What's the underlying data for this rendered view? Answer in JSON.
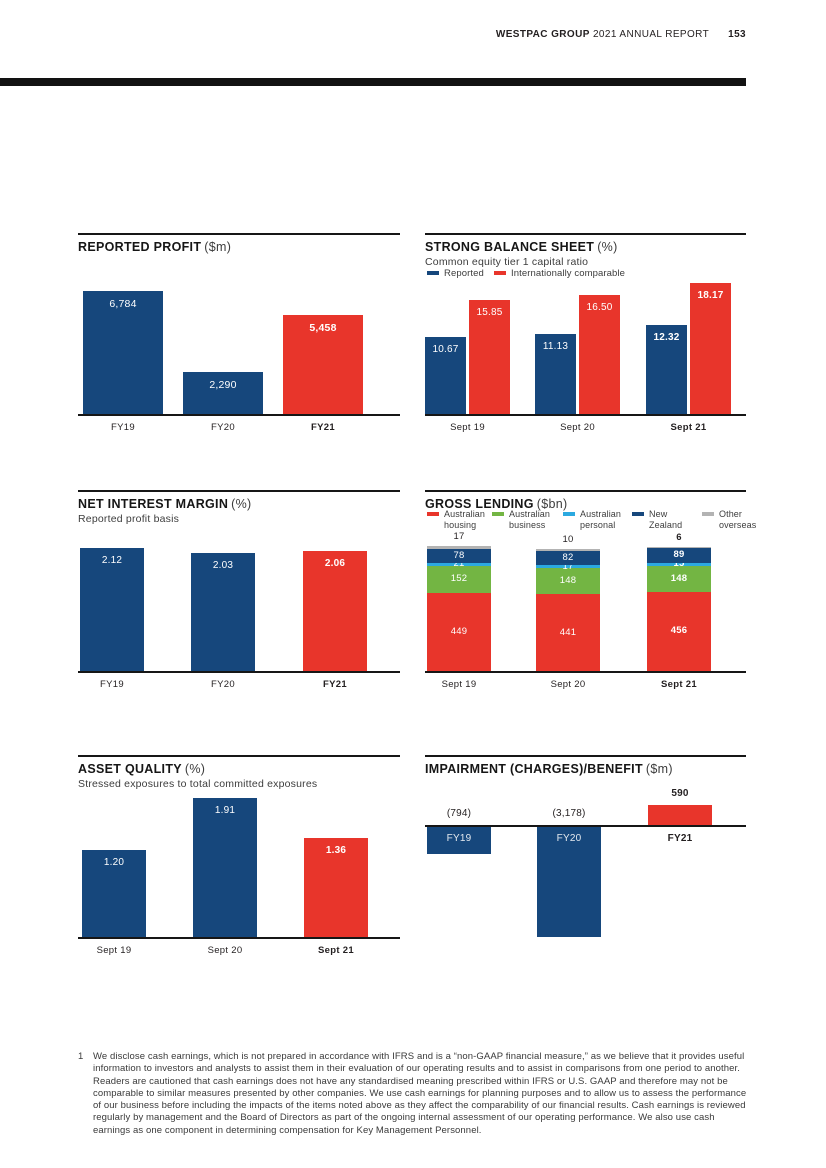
{
  "header": {
    "brand": "WESTPAC GROUP",
    "report_title": "2021 ANNUAL REPORT",
    "page_number": "153"
  },
  "colors": {
    "navy": "#16477c",
    "red": "#e8352b",
    "green": "#73b543",
    "cyan": "#2ba9e0",
    "gray": "#b3b3b3",
    "ink": "#231f20"
  },
  "chart_data": [
    {
      "id": "reported-profit",
      "type": "bar",
      "title": "REPORTED PROFIT",
      "unit": "($m)",
      "categories": [
        "FY19",
        "FY20",
        "FY21"
      ],
      "values": [
        6784,
        2290,
        5458
      ],
      "value_labels": [
        "6,784",
        "2,290",
        "5,458"
      ],
      "bar_colors": [
        "navy",
        "navy",
        "red"
      ],
      "emphasis_index": 2,
      "ylim": [
        0,
        6784
      ],
      "grid": false,
      "legend_position": "none"
    },
    {
      "id": "strong-balance-sheet",
      "type": "grouped-bar",
      "title": "STRONG BALANCE SHEET",
      "unit": "(%)",
      "subtitle": "Common equity tier 1 capital ratio",
      "categories": [
        "Sept 19",
        "Sept 20",
        "Sept 21"
      ],
      "series": [
        {
          "name": "Reported",
          "color": "navy",
          "values": [
            10.67,
            11.13,
            12.32
          ],
          "value_labels": [
            "10.67",
            "11.13",
            "12.32"
          ]
        },
        {
          "name": "Internationally comparable",
          "color": "red",
          "values": [
            15.85,
            16.5,
            18.17
          ],
          "value_labels": [
            "15.85",
            "16.50",
            "18.17"
          ]
        }
      ],
      "emphasis_index": 2,
      "ylim": [
        0,
        18.17
      ],
      "grid": false,
      "legend_position": "top"
    },
    {
      "id": "net-interest-margin",
      "type": "bar",
      "title": "NET INTEREST MARGIN",
      "unit": "(%)",
      "subtitle": "Reported profit basis",
      "categories": [
        "FY19",
        "FY20",
        "FY21"
      ],
      "values": [
        2.12,
        2.03,
        2.06
      ],
      "value_labels": [
        "2.12",
        "2.03",
        "2.06"
      ],
      "bar_colors": [
        "navy",
        "navy",
        "red"
      ],
      "emphasis_index": 2,
      "ylim": [
        0,
        2.12
      ],
      "grid": false,
      "legend_position": "none"
    },
    {
      "id": "gross-lending",
      "type": "stacked-bar",
      "title": "GROSS LENDING",
      "unit": "($bn)",
      "categories": [
        "Sept 19",
        "Sept 20",
        "Sept 21"
      ],
      "series": [
        {
          "name": "Australian housing",
          "legend_lines": [
            "Australian",
            "housing"
          ],
          "color": "red",
          "values": [
            449,
            441,
            456
          ]
        },
        {
          "name": "Australian business",
          "legend_lines": [
            "Australian",
            "business"
          ],
          "color": "green",
          "values": [
            152,
            148,
            148
          ]
        },
        {
          "name": "Australian personal",
          "legend_lines": [
            "Australian",
            "personal"
          ],
          "color": "cyan",
          "values": [
            21,
            17,
            15
          ]
        },
        {
          "name": "New Zealand",
          "legend_lines": [
            "New",
            "Zealand"
          ],
          "color": "navy",
          "values": [
            78,
            82,
            89
          ]
        },
        {
          "name": "Other overseas",
          "legend_lines": [
            "Other",
            "overseas"
          ],
          "color": "gray",
          "values": [
            17,
            10,
            6
          ],
          "label_position": "above"
        }
      ],
      "emphasis_index": 2,
      "ylim": [
        0,
        717
      ],
      "grid": false,
      "legend_position": "top"
    },
    {
      "id": "asset-quality",
      "type": "bar",
      "title": "ASSET QUALITY",
      "unit": "(%)",
      "subtitle": "Stressed exposures to total committed exposures",
      "categories": [
        "Sept 19",
        "Sept 20",
        "Sept 21"
      ],
      "values": [
        1.2,
        1.91,
        1.36
      ],
      "value_labels": [
        "1.20",
        "1.91",
        "1.36"
      ],
      "bar_colors": [
        "navy",
        "navy",
        "red"
      ],
      "emphasis_index": 2,
      "ylim": [
        0,
        1.91
      ],
      "grid": false,
      "legend_position": "none"
    },
    {
      "id": "impairment",
      "type": "posneg-bar",
      "title": "IMPAIRMENT (CHARGES)/BENEFIT",
      "unit": "($m)",
      "categories": [
        "FY19",
        "FY20",
        "FY21"
      ],
      "values": [
        -794,
        -3178,
        590
      ],
      "value_labels": [
        "(794)",
        "(3,178)",
        "590"
      ],
      "bar_colors": [
        "navy",
        "navy",
        "red"
      ],
      "emphasis_index": 2,
      "ylim": [
        -3178,
        590
      ],
      "grid": false,
      "legend_position": "none"
    }
  ],
  "footnote": {
    "marker": "1",
    "text": "We disclose cash earnings, which is not prepared in accordance with IFRS and is a “non-GAAP financial measure,” as we believe that it provides useful information to investors and analysts to assist them in their evaluation of our operating results and to assist in comparisons from one period to another. Readers are cautioned that cash earnings does not have any standardised meaning prescribed within IFRS or U.S. GAAP and therefore may not be comparable to similar measures presented by other companies. We use cash earnings for planning purposes and to allow us to assess the performance of our business before including the impacts of the items noted above as they affect the comparability of our financial results. Cash earnings is reviewed regularly by management and the Board of Directors as part of the ongoing internal assessment of our operating performance. We also use cash earnings as one component in determining compensation for Key Management Personnel."
  }
}
